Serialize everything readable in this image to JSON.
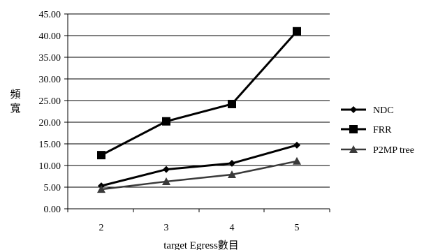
{
  "chart_data": {
    "type": "line",
    "xlabel": "target Egress數目",
    "ylabel": "頻寬",
    "ylim": [
      0,
      45
    ],
    "yticks": [
      "0.00",
      "5.00",
      "10.00",
      "15.00",
      "20.00",
      "25.00",
      "30.00",
      "35.00",
      "40.00",
      "45.00"
    ],
    "categories": [
      "2",
      "3",
      "4",
      "5"
    ],
    "grid": "horizontal",
    "legend_position": "right",
    "series": [
      {
        "name": "NDC",
        "values": [
          5.3,
          9.1,
          10.5,
          14.7
        ],
        "marker": "diamond",
        "color": "#000000"
      },
      {
        "name": "FRR",
        "values": [
          12.4,
          20.2,
          24.2,
          41.0
        ],
        "marker": "square",
        "color": "#000000"
      },
      {
        "name": "P2MP tree",
        "values": [
          4.5,
          6.3,
          7.9,
          11.0
        ],
        "marker": "triangle",
        "color": "#3a3a3a"
      }
    ]
  }
}
